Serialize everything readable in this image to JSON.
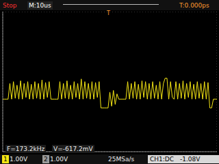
{
  "status": "Stop",
  "timebase": "M:10us",
  "trigger_time": "T:0.000ps",
  "trigger_marker": "T",
  "measurements": [
    "F=173.2kHz",
    "V=-617.2mV"
  ],
  "channels": [
    {
      "label": "1",
      "scale": "1.00V"
    },
    {
      "label": "2",
      "scale": "1.00V"
    }
  ],
  "sample_rate": "25MSa/s",
  "trigger": {
    "source": "CH1:DC",
    "level": "-1.08V"
  },
  "chart_data": {
    "type": "line",
    "color": "#f5e614",
    "grid": true,
    "tick_labels": false,
    "xlim": [
      -60,
      60
    ],
    "ylim": [
      -4,
      4
    ],
    "xticks": [
      -60,
      -50,
      -40,
      -30,
      -20,
      -10,
      0,
      10,
      20,
      30,
      40,
      50,
      60
    ],
    "yticks": [
      -4,
      -3,
      -2,
      -1,
      0,
      1,
      2,
      3,
      4
    ],
    "x": [
      -60,
      -59,
      -58,
      -57,
      -56,
      -55,
      -54,
      -53,
      -52,
      -51,
      -50,
      -49,
      -48,
      -47,
      -46,
      -45,
      -44,
      -43,
      -42,
      -41,
      -40,
      -39,
      -38,
      -37,
      -36,
      -35,
      -34,
      -33,
      -32,
      -31,
      -30,
      -29,
      -28,
      -27,
      -26,
      -25,
      -24,
      -23,
      -22,
      -21,
      -20,
      -19,
      -18,
      -17,
      -16,
      -15,
      -14,
      -13,
      -12,
      -11,
      -10,
      -9,
      -8,
      -7,
      -6,
      -5,
      -4,
      -3,
      -2,
      -1,
      0,
      1,
      2,
      3,
      4,
      5,
      6,
      7,
      8,
      9,
      10,
      11,
      12,
      13,
      14,
      15,
      16,
      17,
      18,
      19,
      20,
      21,
      22,
      23,
      24,
      25,
      26,
      27,
      28,
      29,
      30,
      31,
      32,
      33,
      34,
      35,
      36,
      37,
      38,
      39,
      40,
      41,
      42,
      43,
      44,
      45,
      46,
      47,
      48,
      49,
      50,
      51,
      52,
      53,
      54,
      55,
      56,
      57,
      58,
      59,
      60
    ],
    "values": [
      -1,
      -1,
      -1,
      -1,
      -0.1,
      -1,
      0,
      -0.95,
      -0.2,
      -1,
      0.05,
      -1,
      -0.1,
      -0.9,
      0,
      -1,
      -0.15,
      -1,
      0,
      -0.95,
      -0.1,
      -1,
      0.1,
      -1,
      -0.05,
      -0.9,
      0,
      -1,
      -1,
      -1,
      -1,
      -1,
      0,
      -1,
      -0.1,
      -0.95,
      0.05,
      -1,
      -0.2,
      -1,
      0,
      -0.9,
      -0.1,
      -1,
      0.15,
      -1,
      0,
      -0.95,
      -0.1,
      -1,
      0,
      -1,
      -0.05,
      -0.9,
      0,
      -1.5,
      -1.5,
      -1.5,
      -1.5,
      -1.5,
      -0.6,
      -1.4,
      -0.5,
      -1.3,
      -0.7,
      -1,
      -1,
      -1,
      -1,
      -1,
      0,
      -1,
      -0.1,
      -0.95,
      0,
      -1,
      -0.15,
      -1,
      0.05,
      -0.9,
      0,
      -1,
      -0.1,
      -1,
      0,
      -0.95,
      -0.2,
      -1,
      0,
      -1,
      -0.1,
      0.2,
      0.2,
      -1,
      0,
      -0.9,
      -1,
      0,
      -1,
      -0.1,
      -0.95,
      0.05,
      -1,
      -0.1,
      -0.9,
      0,
      -1,
      -0.15,
      -1,
      0,
      -0.95,
      -0.1,
      -1,
      0,
      -1,
      -0.05,
      -1.5,
      -1.5,
      -1,
      -1,
      -1
    ]
  }
}
